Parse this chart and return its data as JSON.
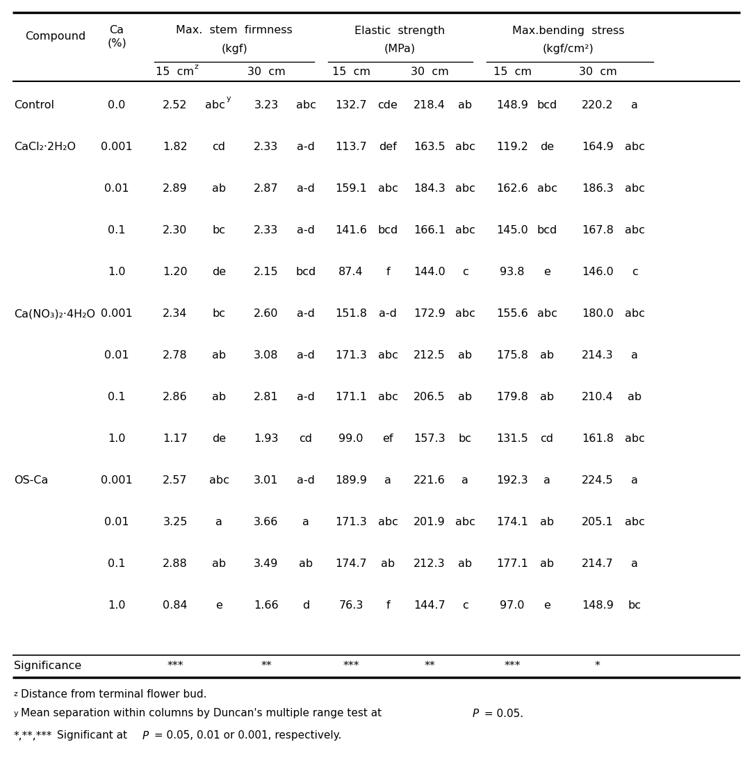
{
  "rows": [
    [
      "Control",
      "0.0",
      "2.52",
      "abc",
      "y",
      "3.23",
      "abc",
      "132.7",
      "cde",
      "218.4",
      "ab",
      "148.9",
      "bcd",
      "220.2",
      "a"
    ],
    [
      "CaCl₂·2H₂O",
      "0.001",
      "1.82",
      "cd",
      "",
      "2.33",
      "a-d",
      "113.7",
      "def",
      "163.5",
      "abc",
      "119.2",
      "de",
      "164.9",
      "abc"
    ],
    [
      "",
      "0.01",
      "2.89",
      "ab",
      "",
      "2.87",
      "a-d",
      "159.1",
      "abc",
      "184.3",
      "abc",
      "162.6",
      "abc",
      "186.3",
      "abc"
    ],
    [
      "",
      "0.1",
      "2.30",
      "bc",
      "",
      "2.33",
      "a-d",
      "141.6",
      "bcd",
      "166.1",
      "abc",
      "145.0",
      "bcd",
      "167.8",
      "abc"
    ],
    [
      "",
      "1.0",
      "1.20",
      "de",
      "",
      "2.15",
      "bcd",
      "87.4",
      "f",
      "144.0",
      "c",
      "93.8",
      "e",
      "146.0",
      "c"
    ],
    [
      "Ca(NO₃)₂·4H₂O",
      "0.001",
      "2.34",
      "bc",
      "",
      "2.60",
      "a-d",
      "151.8",
      "a-d",
      "172.9",
      "abc",
      "155.6",
      "abc",
      "180.0",
      "abc"
    ],
    [
      "",
      "0.01",
      "2.78",
      "ab",
      "",
      "3.08",
      "a-d",
      "171.3",
      "abc",
      "212.5",
      "ab",
      "175.8",
      "ab",
      "214.3",
      "a"
    ],
    [
      "",
      "0.1",
      "2.86",
      "ab",
      "",
      "2.81",
      "a-d",
      "171.1",
      "abc",
      "206.5",
      "ab",
      "179.8",
      "ab",
      "210.4",
      "ab"
    ],
    [
      "",
      "1.0",
      "1.17",
      "de",
      "",
      "1.93",
      "cd",
      "99.0",
      "ef",
      "157.3",
      "bc",
      "131.5",
      "cd",
      "161.8",
      "abc"
    ],
    [
      "OS-Ca",
      "0.001",
      "2.57",
      "abc",
      "",
      "3.01",
      "a-d",
      "189.9",
      "a",
      "221.6",
      "a",
      "192.3",
      "a",
      "224.5",
      "a"
    ],
    [
      "",
      "0.01",
      "3.25",
      "a",
      "",
      "3.66",
      "a",
      "171.3",
      "abc",
      "201.9",
      "abc",
      "174.1",
      "ab",
      "205.1",
      "abc"
    ],
    [
      "",
      "0.1",
      "2.88",
      "ab",
      "",
      "3.49",
      "ab",
      "174.7",
      "ab",
      "212.3",
      "ab",
      "177.1",
      "ab",
      "214.7",
      "a"
    ],
    [
      "",
      "1.0",
      "0.84",
      "e",
      "",
      "1.66",
      "d",
      "76.3",
      "f",
      "144.7",
      "c",
      "97.0",
      "e",
      "148.9",
      "bc"
    ]
  ]
}
